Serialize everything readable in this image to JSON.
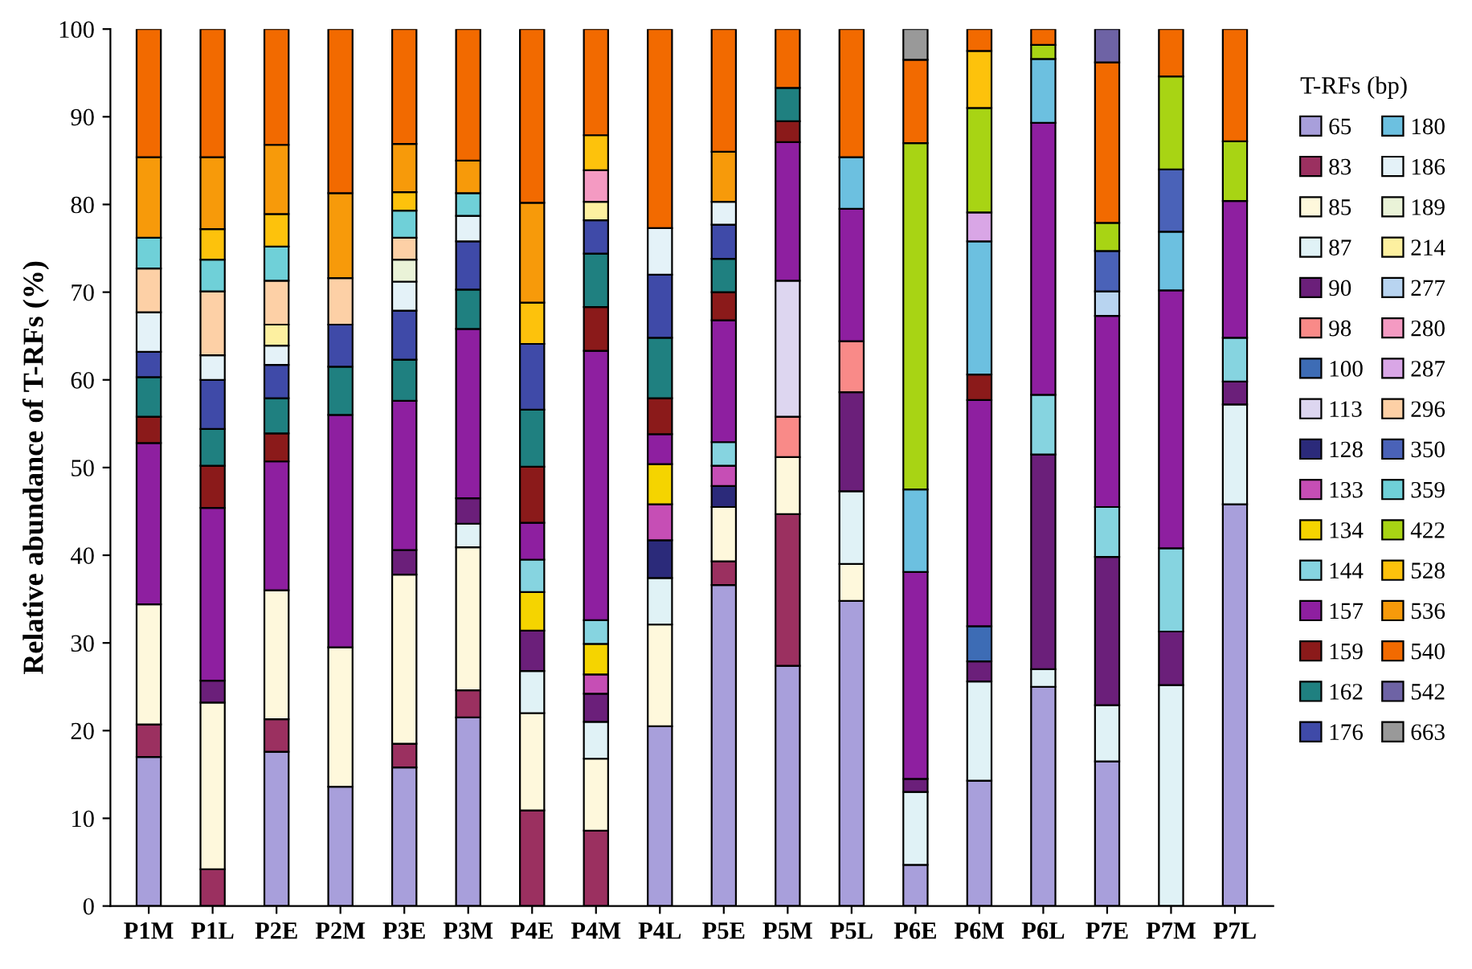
{
  "chart_data": {
    "type": "bar",
    "stacked": true,
    "ylabel": "Relative abundance of T-RFs (%)",
    "legend_title": "T-RFs (bp)",
    "legend": "right",
    "categories": [
      "P1M",
      "P1L",
      "P2E",
      "P2M",
      "P3E",
      "P3M",
      "P4E",
      "P4M",
      "P4L",
      "P5E",
      "P5M",
      "P5L",
      "P6E",
      "P6M",
      "P6L",
      "P7E",
      "P7M",
      "P7L"
    ],
    "ylim": [
      0,
      100
    ],
    "yticks": [
      0,
      10,
      20,
      30,
      40,
      50,
      60,
      70,
      80,
      90,
      100
    ],
    "grid": false,
    "series": [
      {
        "name": "65",
        "color": "#a89fdb",
        "values": [
          17.0,
          null,
          17.6,
          13.6,
          15.8,
          21.5,
          null,
          null,
          20.5,
          36.6,
          27.4,
          34.8,
          4.7,
          14.3,
          25.0,
          16.5,
          null,
          45.8
        ]
      },
      {
        "name": "83",
        "color": "#9b3060",
        "values": [
          3.7,
          4.2,
          3.7,
          null,
          2.7,
          3.1,
          10.9,
          8.6,
          null,
          2.7,
          17.3,
          null,
          null,
          null,
          null,
          null,
          null,
          null
        ]
      },
      {
        "name": "85",
        "color": "#fef8dc",
        "values": [
          13.7,
          19.0,
          14.7,
          15.9,
          19.3,
          16.3,
          11.1,
          8.2,
          11.6,
          6.2,
          6.5,
          4.2,
          null,
          null,
          null,
          null,
          null,
          null
        ]
      },
      {
        "name": "87",
        "color": "#e0f2f6",
        "values": [
          null,
          null,
          null,
          null,
          null,
          2.7,
          4.8,
          4.2,
          5.3,
          null,
          null,
          8.3,
          8.3,
          11.3,
          2.0,
          6.4,
          25.2,
          11.4
        ]
      },
      {
        "name": "90",
        "color": "#6b1f7a",
        "values": [
          null,
          2.5,
          null,
          null,
          2.8,
          2.9,
          4.6,
          3.2,
          null,
          null,
          null,
          11.3,
          1.5,
          2.3,
          24.5,
          16.9,
          6.1,
          2.6
        ]
      },
      {
        "name": "98",
        "color": "#f98a88",
        "values": [
          null,
          null,
          null,
          null,
          null,
          null,
          null,
          null,
          null,
          null,
          4.6,
          5.8,
          null,
          null,
          null,
          null,
          null,
          null
        ]
      },
      {
        "name": "100",
        "color": "#3d6cb5",
        "values": [
          null,
          null,
          null,
          null,
          null,
          null,
          null,
          null,
          null,
          null,
          null,
          null,
          null,
          4.0,
          null,
          null,
          null,
          null
        ]
      },
      {
        "name": "113",
        "color": "#ddd6f0",
        "values": [
          null,
          null,
          null,
          null,
          null,
          null,
          null,
          null,
          null,
          null,
          15.5,
          null,
          null,
          null,
          null,
          null,
          null,
          null
        ]
      },
      {
        "name": "128",
        "color": "#2b2a7a",
        "values": [
          null,
          null,
          null,
          null,
          null,
          null,
          null,
          null,
          4.3,
          2.4,
          null,
          null,
          null,
          null,
          null,
          null,
          null,
          null
        ]
      },
      {
        "name": "133",
        "color": "#c64eb5",
        "values": [
          null,
          null,
          null,
          null,
          null,
          null,
          null,
          2.2,
          4.1,
          2.3,
          null,
          null,
          null,
          null,
          null,
          null,
          null,
          null
        ]
      },
      {
        "name": "134",
        "color": "#f5d400",
        "values": [
          null,
          null,
          null,
          null,
          null,
          null,
          4.4,
          3.5,
          4.6,
          null,
          null,
          null,
          null,
          null,
          null,
          null,
          null,
          null
        ]
      },
      {
        "name": "144",
        "color": "#86d4e0",
        "values": [
          null,
          null,
          null,
          null,
          null,
          null,
          3.7,
          2.7,
          null,
          2.7,
          null,
          null,
          null,
          null,
          6.8,
          5.7,
          9.5,
          5.0
        ]
      },
      {
        "name": "157",
        "color": "#8e1fa0",
        "values": [
          18.4,
          19.7,
          14.7,
          26.5,
          17.0,
          19.3,
          4.2,
          30.7,
          3.4,
          13.9,
          15.8,
          15.1,
          23.6,
          25.8,
          31.0,
          21.8,
          29.4,
          15.6
        ]
      },
      {
        "name": "159",
        "color": "#8b1a1a",
        "values": [
          3.0,
          4.8,
          3.2,
          null,
          null,
          null,
          6.4,
          5.0,
          4.1,
          3.2,
          2.4,
          null,
          null,
          2.9,
          null,
          null,
          null,
          null
        ]
      },
      {
        "name": "162",
        "color": "#1f8080",
        "values": [
          4.5,
          4.2,
          4.0,
          5.5,
          4.7,
          4.5,
          6.5,
          6.1,
          6.9,
          3.8,
          3.8,
          null,
          null,
          null,
          null,
          null,
          null,
          null
        ]
      },
      {
        "name": "176",
        "color": "#3f4aa8",
        "values": [
          2.9,
          5.6,
          3.8,
          4.8,
          5.6,
          5.5,
          7.5,
          3.8,
          7.2,
          3.9,
          null,
          null,
          null,
          null,
          null,
          null,
          null,
          null
        ]
      },
      {
        "name": "180",
        "color": "#6cc0e0",
        "values": [
          null,
          null,
          null,
          null,
          null,
          null,
          null,
          null,
          null,
          null,
          null,
          5.9,
          9.4,
          15.2,
          7.3,
          null,
          6.7,
          null
        ]
      },
      {
        "name": "186",
        "color": "#e4f2f8",
        "values": [
          4.5,
          2.8,
          2.2,
          null,
          3.3,
          2.9,
          null,
          null,
          5.3,
          2.6,
          null,
          null,
          null,
          null,
          null,
          null,
          null,
          null
        ]
      },
      {
        "name": "189",
        "color": "#eaf3d8",
        "values": [
          null,
          null,
          null,
          null,
          2.5,
          null,
          null,
          null,
          null,
          null,
          null,
          null,
          null,
          null,
          null,
          null,
          null,
          null
        ]
      },
      {
        "name": "214",
        "color": "#fdf0a0",
        "values": [
          null,
          null,
          2.4,
          null,
          null,
          null,
          null,
          2.1,
          null,
          null,
          null,
          null,
          null,
          null,
          null,
          null,
          null,
          null
        ]
      },
      {
        "name": "277",
        "color": "#b8d4f0",
        "values": [
          null,
          null,
          null,
          null,
          null,
          null,
          null,
          null,
          null,
          null,
          null,
          null,
          null,
          null,
          null,
          2.8,
          null,
          null
        ]
      },
      {
        "name": "280",
        "color": "#f49ac2",
        "values": [
          null,
          null,
          null,
          null,
          null,
          null,
          null,
          3.6,
          null,
          null,
          null,
          null,
          null,
          null,
          null,
          null,
          null,
          null
        ]
      },
      {
        "name": "287",
        "color": "#d9a6e6",
        "values": [
          null,
          null,
          null,
          null,
          null,
          null,
          null,
          null,
          null,
          null,
          null,
          null,
          null,
          3.3,
          null,
          null,
          null,
          null
        ]
      },
      {
        "name": "296",
        "color": "#fdd0a6",
        "values": [
          5.0,
          7.3,
          5.0,
          5.3,
          2.5,
          null,
          null,
          null,
          null,
          null,
          null,
          null,
          null,
          null,
          null,
          null,
          null,
          null
        ]
      },
      {
        "name": "350",
        "color": "#4a62b8",
        "values": [
          null,
          null,
          null,
          null,
          null,
          null,
          null,
          null,
          null,
          null,
          null,
          null,
          null,
          null,
          null,
          4.6,
          7.1,
          null
        ]
      },
      {
        "name": "359",
        "color": "#6fd0d8",
        "values": [
          3.5,
          3.6,
          3.9,
          null,
          3.1,
          2.6,
          null,
          null,
          null,
          null,
          null,
          null,
          null,
          null,
          null,
          null,
          null,
          null
        ]
      },
      {
        "name": "422",
        "color": "#a8d414",
        "values": [
          null,
          null,
          null,
          null,
          null,
          null,
          null,
          null,
          null,
          null,
          null,
          null,
          39.5,
          11.9,
          1.6,
          3.2,
          10.6,
          6.8
        ]
      },
      {
        "name": "528",
        "color": "#fdc20c",
        "values": [
          null,
          3.5,
          3.7,
          null,
          2.1,
          null,
          4.7,
          4.0,
          null,
          null,
          null,
          null,
          null,
          6.5,
          null,
          null,
          null,
          null
        ]
      },
      {
        "name": "536",
        "color": "#f79a0a",
        "values": [
          9.2,
          8.2,
          7.9,
          9.7,
          5.5,
          3.7,
          11.4,
          null,
          null,
          5.7,
          null,
          null,
          null,
          null,
          null,
          null,
          null,
          null
        ]
      },
      {
        "name": "540",
        "color": "#f26a00",
        "values": [
          14.6,
          14.6,
          13.2,
          18.7,
          13.1,
          15.0,
          19.8,
          12.1,
          22.7,
          14.0,
          6.7,
          14.6,
          9.5,
          2.5,
          1.8,
          18.3,
          5.4,
          12.8
        ]
      },
      {
        "name": "542",
        "color": "#6e63a5",
        "values": [
          null,
          null,
          null,
          null,
          null,
          null,
          null,
          null,
          null,
          null,
          null,
          null,
          null,
          null,
          null,
          3.8,
          null,
          null
        ]
      },
      {
        "name": "663",
        "color": "#999999",
        "values": [
          null,
          null,
          null,
          null,
          null,
          null,
          null,
          null,
          null,
          null,
          null,
          null,
          3.5,
          null,
          null,
          null,
          null,
          null
        ]
      }
    ]
  }
}
